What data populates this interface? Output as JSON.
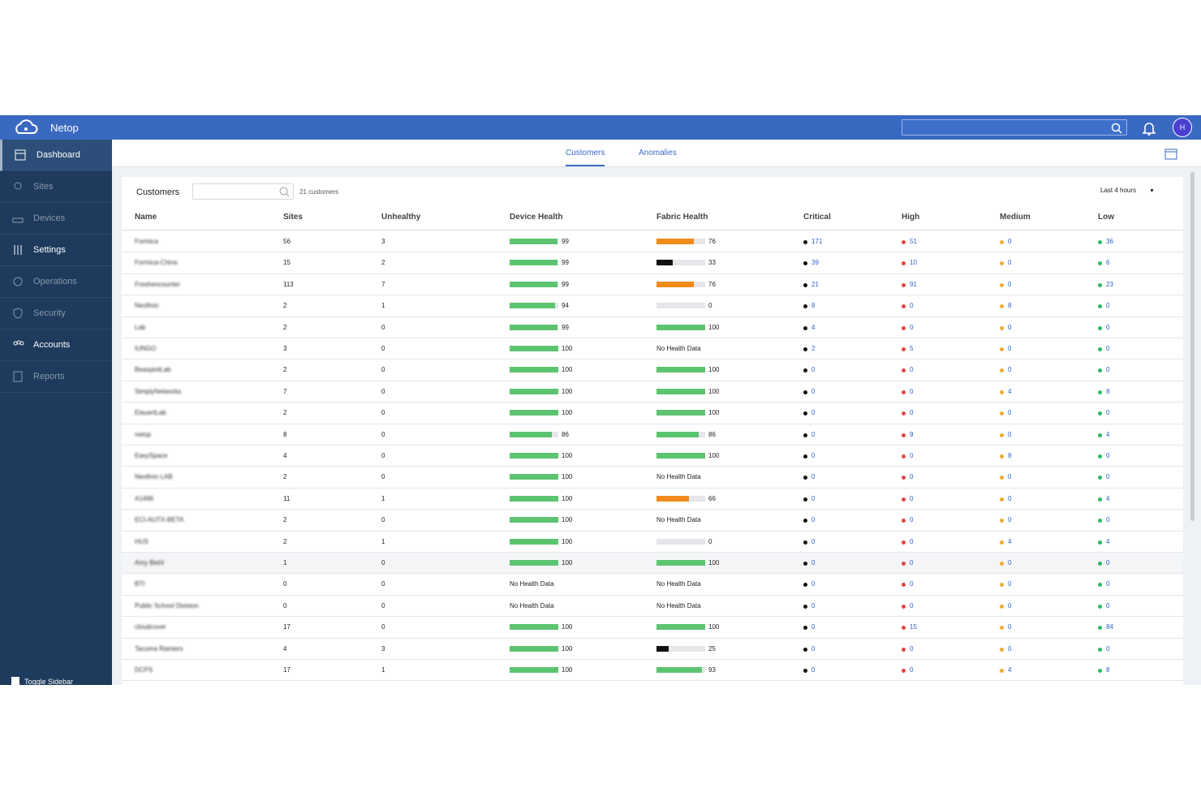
{
  "header": {
    "brand": "Netop",
    "avatar": "H"
  },
  "sidebar": {
    "items": [
      "Dashboard",
      "Sites",
      "Devices",
      "Settings",
      "Operations",
      "Security",
      "Accounts",
      "Reports"
    ],
    "toggle": "Toggle Sidebar"
  },
  "tabs": [
    "Customers",
    "Anomalies"
  ],
  "panel": {
    "title": "Customers",
    "count": "21 customers",
    "range": "Last 4 hours"
  },
  "table": {
    "columns": [
      "Name",
      "Sites",
      "Unhealthy",
      "Device Health",
      "Fabric Health",
      "Critical",
      "High",
      "Medium",
      "Low"
    ],
    "rows": [
      [
        "Formica",
        56,
        3,
        99,
        76,
        171,
        51,
        0,
        36
      ],
      [
        "Formica-China",
        15,
        2,
        99,
        33,
        39,
        10,
        0,
        6
      ],
      [
        "Freshencounter",
        113,
        7,
        99,
        76,
        21,
        91,
        0,
        23
      ],
      [
        "Neofinio",
        2,
        1,
        94,
        0,
        8,
        0,
        8,
        0
      ],
      [
        "Lab",
        2,
        0,
        99,
        100,
        4,
        0,
        0,
        0
      ],
      [
        "IUNGO",
        3,
        0,
        100,
        "No Health Data",
        2,
        5,
        0,
        0
      ],
      [
        "BeaspintLab",
        2,
        0,
        100,
        100,
        0,
        0,
        0,
        0
      ],
      [
        "SimplyNetworks",
        7,
        0,
        100,
        100,
        0,
        0,
        4,
        8
      ],
      [
        "ElauertLab",
        2,
        0,
        100,
        100,
        0,
        0,
        0,
        0
      ],
      [
        "netop",
        8,
        0,
        86,
        86,
        0,
        9,
        0,
        4
      ],
      [
        "EasySpace",
        4,
        0,
        100,
        100,
        0,
        0,
        8,
        0
      ],
      [
        "Neofinio LAB",
        2,
        0,
        100,
        "No Health Data",
        0,
        0,
        0,
        0
      ],
      [
        "A1496",
        11,
        1,
        100,
        66,
        0,
        0,
        0,
        4
      ],
      [
        "ECI-AUTX-BETA",
        2,
        0,
        100,
        "No Health Data",
        0,
        0,
        0,
        0
      ],
      [
        "HUS",
        2,
        1,
        100,
        0,
        0,
        0,
        4,
        4
      ],
      [
        "Amy Biehl",
        1,
        0,
        100,
        100,
        0,
        0,
        0,
        0
      ],
      [
        "BTI",
        0,
        0,
        "No Health Data",
        "No Health Data",
        0,
        0,
        0,
        0
      ],
      [
        "Public School Division",
        0,
        0,
        "No Health Data",
        "No Health Data",
        0,
        0,
        0,
        0
      ],
      [
        "cloudcover",
        17,
        0,
        100,
        100,
        0,
        15,
        0,
        84
      ],
      [
        "Tacoma Rainiers",
        4,
        3,
        100,
        25,
        0,
        0,
        0,
        0
      ],
      [
        "DCPS",
        17,
        1,
        100,
        93,
        0,
        0,
        4,
        8
      ]
    ]
  }
}
